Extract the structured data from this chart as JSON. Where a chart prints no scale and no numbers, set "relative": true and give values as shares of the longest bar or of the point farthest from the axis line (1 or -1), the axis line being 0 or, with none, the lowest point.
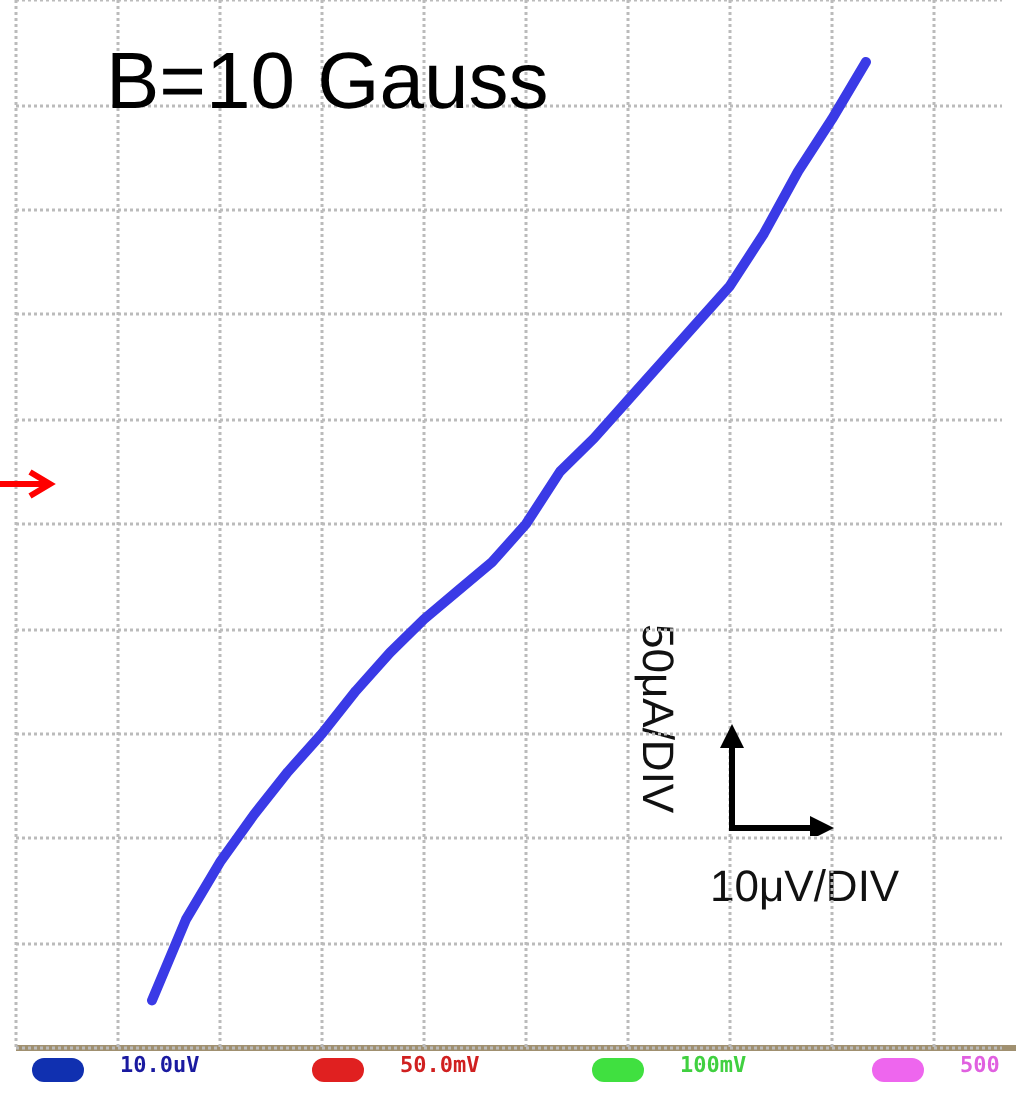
{
  "chart_data": {
    "type": "line",
    "title": "B=10 Gauss",
    "xlabel": "10μV/DIV",
    "ylabel": "50μA/DIV",
    "annotations": [
      "10.0uV",
      "50.0mV",
      "100mV",
      "500"
    ],
    "relative": true,
    "grid": true,
    "marker": "none",
    "line_style": "solid",
    "categories": [
      null,
      null,
      null,
      null,
      null,
      null,
      null,
      null,
      null,
      null,
      null,
      null,
      null,
      null,
      null,
      null,
      null,
      null,
      null,
      null,
      null,
      null,
      null,
      null,
      null,
      null,
      null,
      null,
      null,
      null
    ],
    "series": [
      {
        "color": "#3a3ae6",
        "values": [
          null,
          null,
          null,
          null,
          -1,
          -0.83,
          -0.71,
          -0.61,
          -0.52,
          -0.44,
          -0.35,
          -0.27,
          -0.2,
          -0.14,
          -0.08,
          0,
          0.11,
          0.18,
          0.26,
          0.34,
          0.42,
          0.5,
          0.61,
          0.74,
          0.85,
          0.97,
          null,
          null,
          null,
          null
        ]
      }
    ]
  }
}
